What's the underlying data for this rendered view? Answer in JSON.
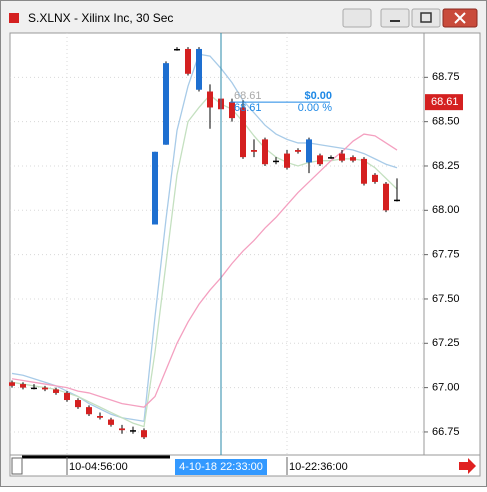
{
  "window": {
    "title": "S.XLNX - Xilinx Inc, 30 Sec"
  },
  "chart_data": {
    "type": "candlestick",
    "categories": [
      null,
      null,
      null,
      null,
      null,
      "10-04:56:00",
      null,
      null,
      null,
      null,
      null,
      null,
      null,
      null,
      null,
      null,
      null,
      null,
      null,
      null,
      null,
      null,
      null,
      null,
      null,
      "10-22:36:00",
      null,
      null,
      null,
      null,
      null,
      null,
      null,
      null,
      null,
      null
    ],
    "open": [
      67.03,
      67.02,
      67.0,
      67.0,
      66.99,
      66.97,
      66.93,
      66.89,
      66.84,
      66.82,
      66.77,
      66.76,
      66.76,
      67.92,
      68.37,
      68.91,
      68.91,
      68.68,
      68.67,
      68.63,
      68.61,
      68.58,
      68.34,
      68.4,
      68.28,
      68.32,
      68.34,
      68.27,
      68.31,
      68.3,
      68.32,
      68.3,
      68.29,
      68.2,
      68.15,
      68.06
    ],
    "high": [
      67.04,
      67.03,
      67.02,
      67.01,
      67.0,
      66.98,
      66.94,
      66.9,
      66.86,
      66.83,
      66.79,
      66.78,
      66.77,
      68.33,
      68.84,
      68.92,
      68.92,
      68.92,
      68.71,
      68.65,
      68.63,
      68.62,
      68.4,
      68.41,
      68.3,
      68.34,
      68.35,
      68.41,
      68.32,
      68.31,
      68.34,
      68.31,
      68.3,
      68.21,
      68.16,
      68.18
    ],
    "low": [
      67.0,
      66.99,
      66.99,
      66.98,
      66.96,
      66.92,
      66.88,
      66.84,
      66.82,
      66.78,
      66.74,
      66.74,
      66.71,
      67.92,
      68.37,
      68.9,
      68.76,
      68.67,
      68.46,
      68.46,
      68.5,
      68.29,
      68.3,
      68.25,
      68.26,
      68.23,
      68.32,
      68.21,
      68.25,
      68.29,
      68.27,
      68.27,
      68.14,
      68.15,
      67.99,
      68.05
    ],
    "close": [
      67.01,
      67.0,
      67.0,
      66.99,
      66.97,
      66.93,
      66.89,
      66.85,
      66.83,
      66.79,
      66.76,
      66.76,
      66.72,
      68.33,
      68.83,
      68.91,
      68.77,
      68.91,
      68.58,
      68.57,
      68.52,
      68.3,
      68.33,
      68.26,
      68.28,
      68.24,
      68.33,
      68.4,
      68.26,
      68.3,
      68.28,
      68.28,
      68.15,
      68.16,
      68.0,
      68.06
    ],
    "up_color": "#1e6fd0",
    "down_color": "#d42020",
    "flat_color": "#000000",
    "lines": [
      {
        "color": "#a8cbe8",
        "values": [
          67.08,
          67.07,
          67.05,
          67.03,
          67.01,
          66.98,
          66.95,
          66.91,
          66.88,
          66.85,
          66.83,
          66.82,
          66.81,
          67.4,
          67.95,
          68.45,
          68.7,
          68.88,
          68.87,
          68.8,
          68.72,
          68.62,
          68.55,
          68.48,
          68.43,
          68.4,
          68.38,
          68.38,
          68.37,
          68.36,
          68.35,
          68.34,
          68.32,
          68.29,
          68.26,
          68.24
        ]
      },
      {
        "color": "#c4e0c0",
        "values": [
          67.03,
          67.02,
          67.01,
          67.0,
          66.99,
          66.97,
          66.95,
          66.92,
          66.89,
          66.86,
          66.83,
          66.8,
          66.78,
          67.2,
          67.7,
          68.2,
          68.5,
          68.58,
          68.65,
          68.6,
          68.57,
          68.5,
          68.42,
          68.35,
          68.3,
          68.27,
          68.25,
          68.27,
          68.28,
          68.28,
          68.29,
          68.29,
          68.28,
          68.24,
          68.18,
          68.12
        ]
      },
      {
        "color": "#f4a0c0",
        "values": [
          67.05,
          67.04,
          67.03,
          67.02,
          67.01,
          67.0,
          66.98,
          66.97,
          66.95,
          66.93,
          66.91,
          66.9,
          66.89,
          66.95,
          67.1,
          67.25,
          67.37,
          67.47,
          67.55,
          67.62,
          67.7,
          67.77,
          67.83,
          67.9,
          67.96,
          68.03,
          68.1,
          68.16,
          68.22,
          68.28,
          68.33,
          68.39,
          68.43,
          68.42,
          68.38,
          68.34
        ]
      }
    ],
    "ylim": [
      66.62,
      69.0
    ],
    "yticks": [
      {
        "value": 68.75,
        "label": "68.75"
      },
      {
        "value": 68.5,
        "label": "68.50"
      },
      {
        "value": 68.25,
        "label": "68.25"
      },
      {
        "value": 68.0,
        "label": "68.00"
      },
      {
        "value": 67.75,
        "label": "67.75"
      },
      {
        "value": 67.5,
        "label": "67.50"
      },
      {
        "value": 67.25,
        "label": "67.25"
      },
      {
        "value": 67.0,
        "label": "67.00"
      },
      {
        "value": 66.75,
        "label": "66.75"
      }
    ],
    "last_price": 68.61,
    "grid": true,
    "crosshair": {
      "label": "4-10-18 22:33:00",
      "readout": [
        "68.61",
        "68.61"
      ],
      "change": "$0.00",
      "change_pct": "0.00 %"
    }
  }
}
